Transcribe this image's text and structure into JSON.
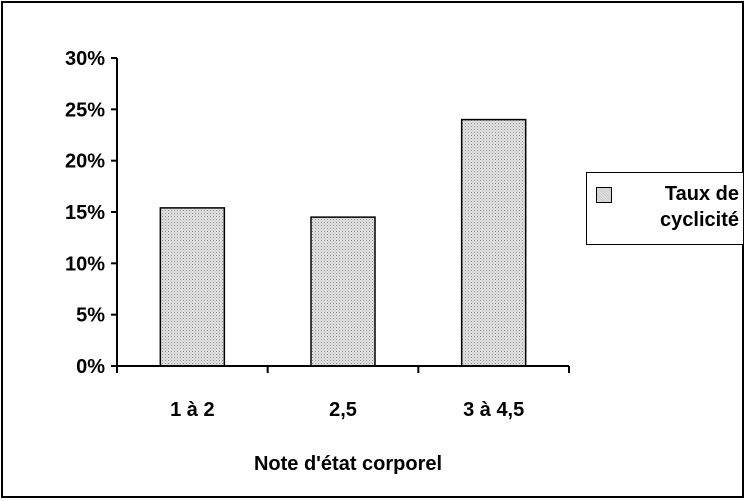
{
  "chart_data": {
    "type": "bar",
    "title": "",
    "xlabel": "Note d'état corporel",
    "ylabel": "",
    "categories": [
      "1 à 2",
      "2,5",
      "3 à 4,5"
    ],
    "series": [
      {
        "name": "Taux de cyclicité",
        "values": [
          15.4,
          14.5,
          24.0
        ]
      }
    ],
    "ylim": [
      0,
      30
    ],
    "yticks": [
      "0%",
      "5%",
      "10%",
      "15%",
      "20%",
      "25%",
      "30%"
    ],
    "grid": false,
    "legend_position": "right",
    "colors": {
      "bar_fill": "#d4d4d4",
      "bar_stroke": "#000000",
      "axis": "#000000"
    }
  }
}
